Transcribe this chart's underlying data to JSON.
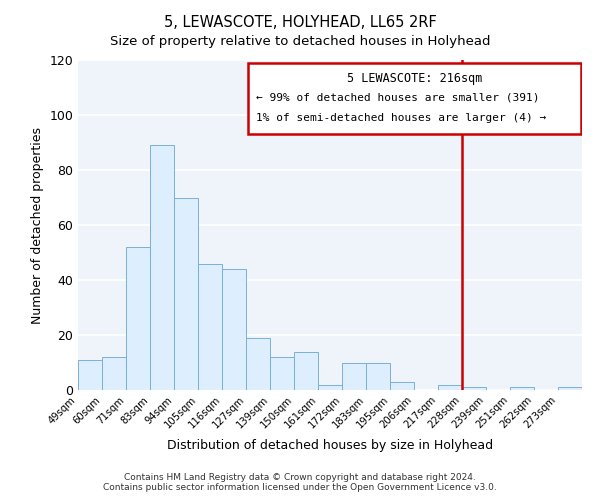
{
  "title": "5, LEWASCOTE, HOLYHEAD, LL65 2RF",
  "subtitle": "Size of property relative to detached houses in Holyhead",
  "xlabel": "Distribution of detached houses by size in Holyhead",
  "ylabel": "Number of detached properties",
  "bar_color": "#ddeeff",
  "bar_edge_color": "#7ab0d4",
  "plot_bg_color": "#eef4fa",
  "fig_bg_color": "#ffffff",
  "grid_color": "#ffffff",
  "bins": [
    "49sqm",
    "60sqm",
    "71sqm",
    "83sqm",
    "94sqm",
    "105sqm",
    "116sqm",
    "127sqm",
    "139sqm",
    "150sqm",
    "161sqm",
    "172sqm",
    "183sqm",
    "195sqm",
    "206sqm",
    "217sqm",
    "228sqm",
    "239sqm",
    "251sqm",
    "262sqm",
    "273sqm"
  ],
  "values": [
    11,
    12,
    52,
    89,
    70,
    46,
    44,
    19,
    12,
    14,
    2,
    10,
    10,
    3,
    0,
    2,
    1,
    0,
    1,
    0,
    1
  ],
  "ylim": [
    0,
    120
  ],
  "yticks": [
    0,
    20,
    40,
    60,
    80,
    100,
    120
  ],
  "property_line_label": "5 LEWASCOTE: 216sqm",
  "annotation_line1": "← 99% of detached houses are smaller (391)",
  "annotation_line2": "1% of semi-detached houses are larger (4) →",
  "box_edge_color": "#cc0000",
  "vline_color": "#cc0000",
  "footer1": "Contains HM Land Registry data © Crown copyright and database right 2024.",
  "footer2": "Contains public sector information licensed under the Open Government Licence v3.0."
}
